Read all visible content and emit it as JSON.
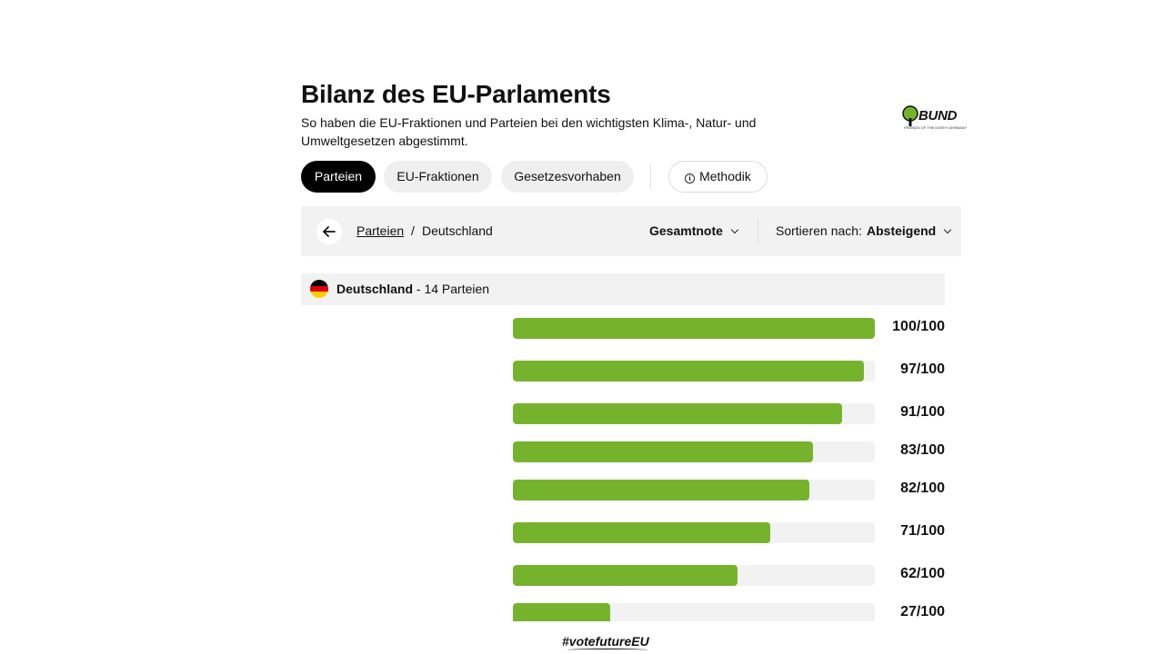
{
  "header": {
    "title": "Bilanz des EU-Parlaments",
    "subtitle": "So haben die EU-Fraktionen und Parteien bei den wichtigsten Klima-, Natur- und Umweltgesetzen abgestimmt."
  },
  "logo": {
    "text": "BUND",
    "tagline": "FRIENDS OF THE EARTH GERMANY"
  },
  "tabs": [
    {
      "label": "Parteien",
      "active": true
    },
    {
      "label": "EU-Fraktionen",
      "active": false
    },
    {
      "label": "Gesetzesvorhaben",
      "active": false
    }
  ],
  "methodik": {
    "label": "Methodik",
    "icon": "info-icon"
  },
  "toolbar": {
    "back_icon": "arrow-left-icon",
    "breadcrumb": {
      "parent": "Parteien",
      "separator": "/",
      "current": "Deutschland"
    },
    "metric": "Gesamtnote",
    "sort_label": "Sortieren nach:",
    "sort_value": "Absteigend"
  },
  "country": {
    "name": "Deutschland",
    "count_text": "- 14 Parteien",
    "flag_colors": [
      "#000000",
      "#dd0000",
      "#ffce00"
    ]
  },
  "scores": [
    {
      "value": 100,
      "label": "100/100"
    },
    {
      "value": 97,
      "label": "97/100"
    },
    {
      "value": 91,
      "label": "91/100"
    },
    {
      "value": 83,
      "label": "83/100"
    },
    {
      "value": 82,
      "label": "82/100"
    },
    {
      "value": 71,
      "label": "71/100"
    },
    {
      "value": 62,
      "label": "62/100"
    },
    {
      "value": 27,
      "label": "27/100"
    }
  ],
  "colors": {
    "bar": "#75b32d",
    "track": "#f2f2f2",
    "active_tab": "#000000"
  },
  "footer": {
    "hashtag": "#votefutureEU"
  }
}
